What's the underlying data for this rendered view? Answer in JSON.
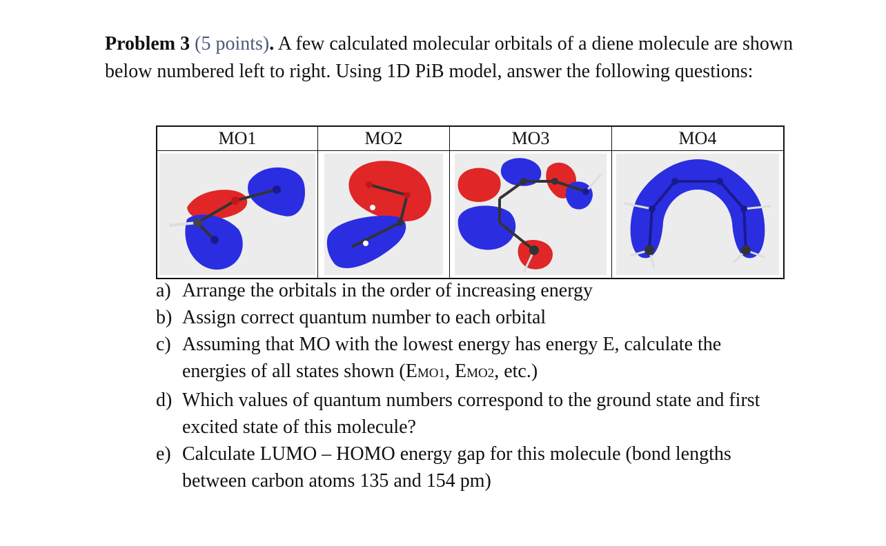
{
  "problem": {
    "heading": "Problem 3",
    "points": "(5 points)",
    "heading_end": ".",
    "intro": "A few calculated molecular orbitals of a diene molecule are shown below numbered left to right. Using 1D PiB model, answer the following questions:"
  },
  "table": {
    "headers": [
      "MO1",
      "MO2",
      "MO3",
      "MO4"
    ]
  },
  "questions": [
    {
      "label": "a)",
      "text": "Arrange the orbitals in the order of increasing energy"
    },
    {
      "label": "b)",
      "text": "Assign correct quantum number to each orbital"
    },
    {
      "label": "c)",
      "text_start": "Assuming that MO with the lowest energy has energy E, calculate the energies of all states shown (E",
      "sub1": "MO1",
      "mid": ", E",
      "sub2": "MO2",
      "text_end": ", etc.)"
    },
    {
      "label": "d)",
      "text": "Which values of quantum numbers correspond to the ground state and first excited state of this molecule?"
    },
    {
      "label": "e)",
      "text": "Calculate LUMO – HOMO energy gap for this molecule (bond lengths between carbon atoms 135 and 154 pm)"
    }
  ],
  "colors": {
    "positive_lobe": "#2a2ee0",
    "negative_lobe": "#e02626",
    "background_panel": "#ececec",
    "points_text": "#4a5a78"
  }
}
